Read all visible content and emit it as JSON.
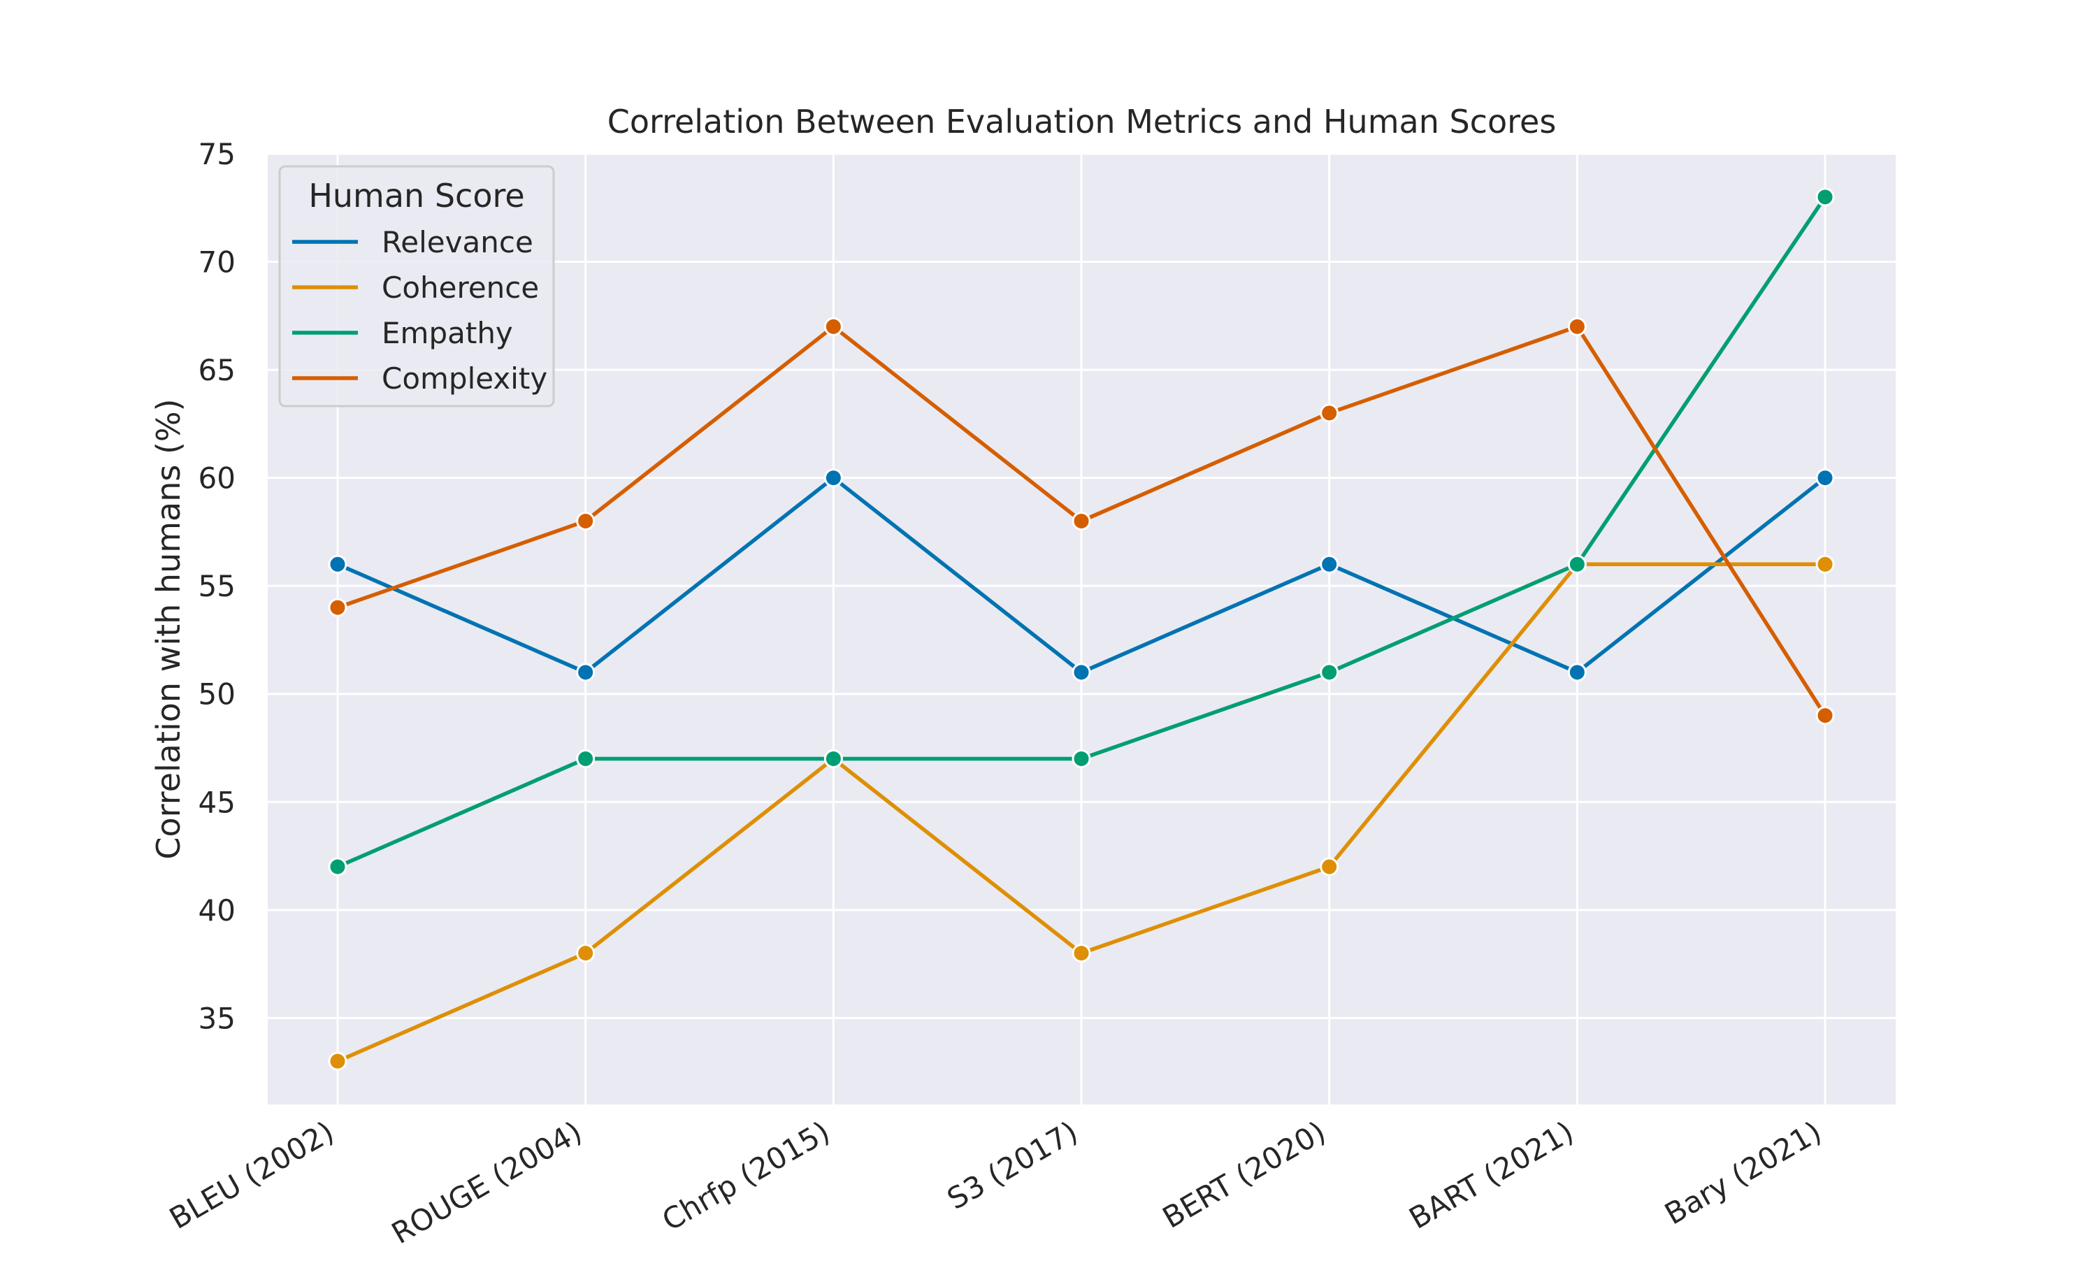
{
  "chart_data": {
    "type": "line",
    "title": "Correlation Between Evaluation Metrics and Human Scores",
    "xlabel": "",
    "ylabel": "Correlation with humans (%)",
    "categories": [
      "BLEU (2002)",
      "ROUGE (2004)",
      "Chrfp (2015)",
      "S3 (2017)",
      "BERT (2020)",
      "BART (2021)",
      "Bary (2021)"
    ],
    "ylim": [
      31,
      75
    ],
    "yticks": [
      35,
      40,
      45,
      50,
      55,
      60,
      65,
      70,
      75
    ],
    "grid": true,
    "legend": {
      "title": "Human Score",
      "placement": "top-left"
    },
    "series": [
      {
        "name": "Relevance",
        "color": "#0173b2",
        "values": [
          56,
          51,
          60,
          51,
          56,
          51,
          60
        ]
      },
      {
        "name": "Coherence",
        "color": "#de8f05",
        "values": [
          33,
          38,
          47,
          38,
          42,
          56,
          56
        ]
      },
      {
        "name": "Empathy",
        "color": "#029e73",
        "values": [
          42,
          47,
          47,
          47,
          51,
          56,
          73
        ]
      },
      {
        "name": "Complexity",
        "color": "#d55e00",
        "values": [
          54,
          58,
          67,
          58,
          63,
          67,
          49
        ]
      }
    ],
    "background_color": "#eaeaf2",
    "grid_color": "#ffffff"
  }
}
